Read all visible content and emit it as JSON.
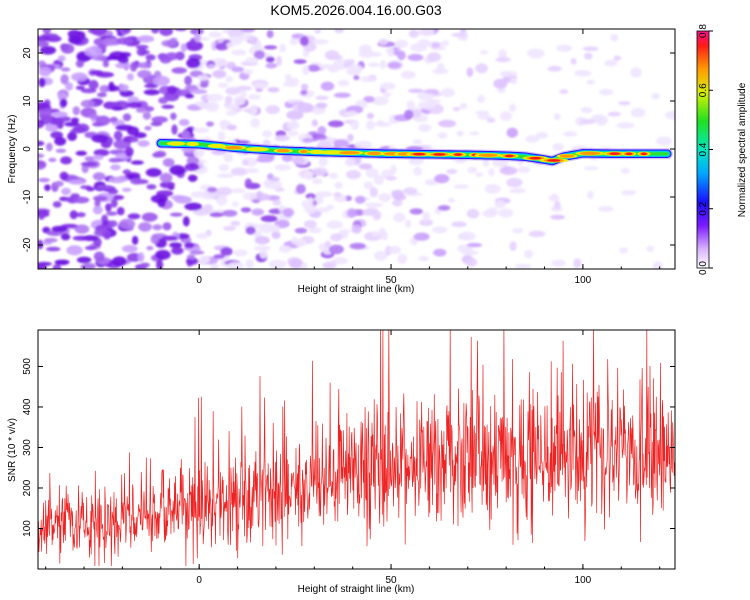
{
  "chart_data": [
    {
      "type": "heatmap",
      "title": "KOM5.2026.004.16.00.G03",
      "xlabel": "Height of straight line (km)",
      "ylabel": "Frequency (Hz)",
      "xlim": [
        -42,
        124
      ],
      "ylim": [
        -25,
        25
      ],
      "xticks": [
        "0",
        "50",
        "100"
      ],
      "yticks": [
        "-20",
        "-10",
        "0",
        "10",
        "20"
      ],
      "colorbar": {
        "label": "Normalized spectral amplitude",
        "range": [
          0.0,
          0.8
        ],
        "ticks": [
          "0.0",
          "0.2",
          "0.4",
          "0.6",
          "0.8"
        ]
      },
      "ridge": {
        "x": [
          -10,
          0,
          10,
          20,
          30,
          40,
          50,
          60,
          70,
          80,
          85,
          90,
          92,
          95,
          100,
          110,
          122
        ],
        "y": [
          1.2,
          1.0,
          0.2,
          -0.3,
          -0.6,
          -0.8,
          -1.0,
          -1.1,
          -1.2,
          -1.4,
          -1.6,
          -2.2,
          -2.5,
          -1.6,
          -0.9,
          -1.0,
          -1.0
        ],
        "amplitude": [
          0.25,
          0.35,
          0.42,
          0.5,
          0.45,
          0.5,
          0.55,
          0.6,
          0.62,
          0.65,
          0.7,
          0.7,
          0.6,
          0.55,
          0.6,
          0.65,
          0.55
        ]
      },
      "colors": {
        "background_noise": "#a070e0",
        "ridge_low": "#2060ff",
        "ridge_mid": "#20e060",
        "ridge_high": "#ff3030"
      }
    },
    {
      "type": "line",
      "xlabel": "Height of straight line (km)",
      "ylabel": "SNR (10 * v/v)",
      "xlim": [
        -42,
        124
      ],
      "ylim": [
        0,
        590
      ],
      "xticks": [
        "0",
        "50",
        "100"
      ],
      "yticks": [
        "100",
        "200",
        "300",
        "400",
        "500"
      ],
      "series": [
        {
          "color": "#ee2222",
          "x": [
            -42,
            -30,
            -20,
            -10,
            0,
            10,
            20,
            30,
            40,
            50,
            60,
            70,
            80,
            90,
            100,
            110,
            124
          ],
          "mean": [
            110,
            115,
            120,
            140,
            160,
            175,
            190,
            210,
            240,
            250,
            255,
            265,
            275,
            270,
            280,
            290,
            295
          ],
          "spread": [
            55,
            55,
            60,
            65,
            80,
            90,
            95,
            100,
            110,
            115,
            110,
            110,
            120,
            110,
            120,
            120,
            120
          ]
        }
      ]
    }
  ]
}
